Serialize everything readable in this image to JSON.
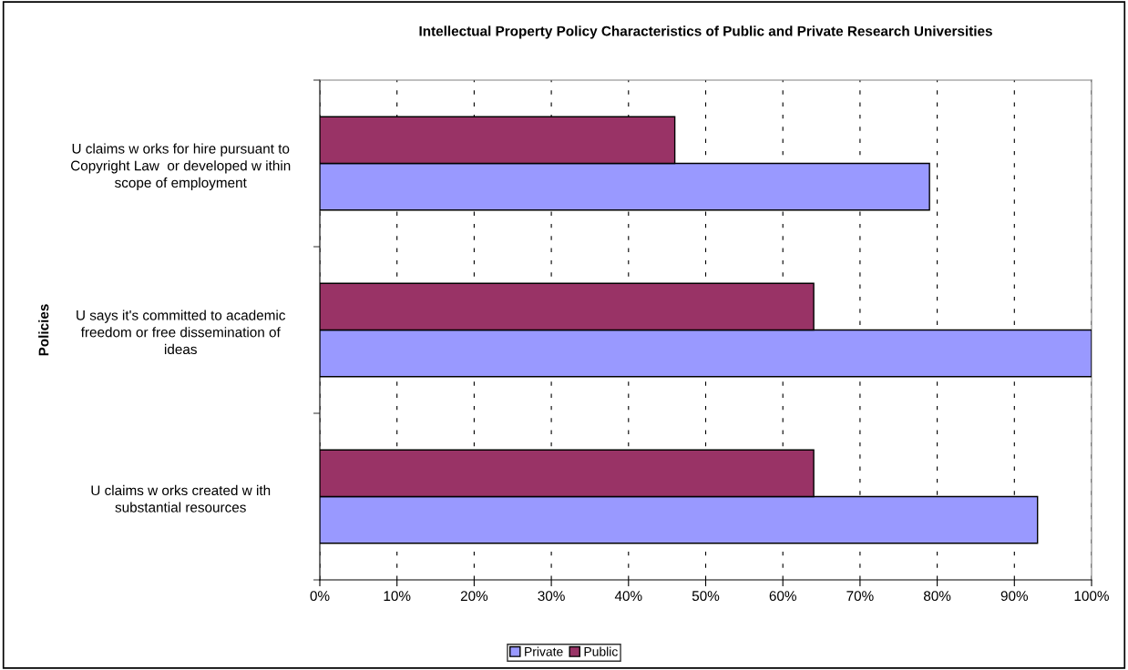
{
  "chart_data": {
    "type": "bar",
    "orientation": "horizontal",
    "title": "Intellectual Property Policy Characteristics of Public and Private Research Universities",
    "ylabel": "Policies",
    "categories": [
      "U claims w orks for hire pursuant to\nCopyright Law  or developed w ithin\nscope of employment",
      "U says it's committed to academic\nfreedom or free dissemination of\nideas",
      "U claims w orks created w ith\nsubstantial resources"
    ],
    "series": [
      {
        "name": "Private",
        "color": "#9999ff",
        "values": [
          79,
          100,
          93
        ]
      },
      {
        "name": "Public",
        "color": "#993366",
        "values": [
          46,
          64,
          64
        ]
      }
    ],
    "xlim": [
      0,
      100
    ],
    "xticks": [
      {
        "value": 0,
        "label": "0%"
      },
      {
        "value": 10,
        "label": "10%"
      },
      {
        "value": 20,
        "label": "20%"
      },
      {
        "value": 30,
        "label": "30%"
      },
      {
        "value": 40,
        "label": "40%"
      },
      {
        "value": 50,
        "label": "50%"
      },
      {
        "value": 60,
        "label": "60%"
      },
      {
        "value": 70,
        "label": "70%"
      },
      {
        "value": 80,
        "label": "80%"
      },
      {
        "value": 90,
        "label": "90%"
      },
      {
        "value": 100,
        "label": "100%"
      }
    ],
    "grid": "x",
    "legend": "bottom"
  }
}
